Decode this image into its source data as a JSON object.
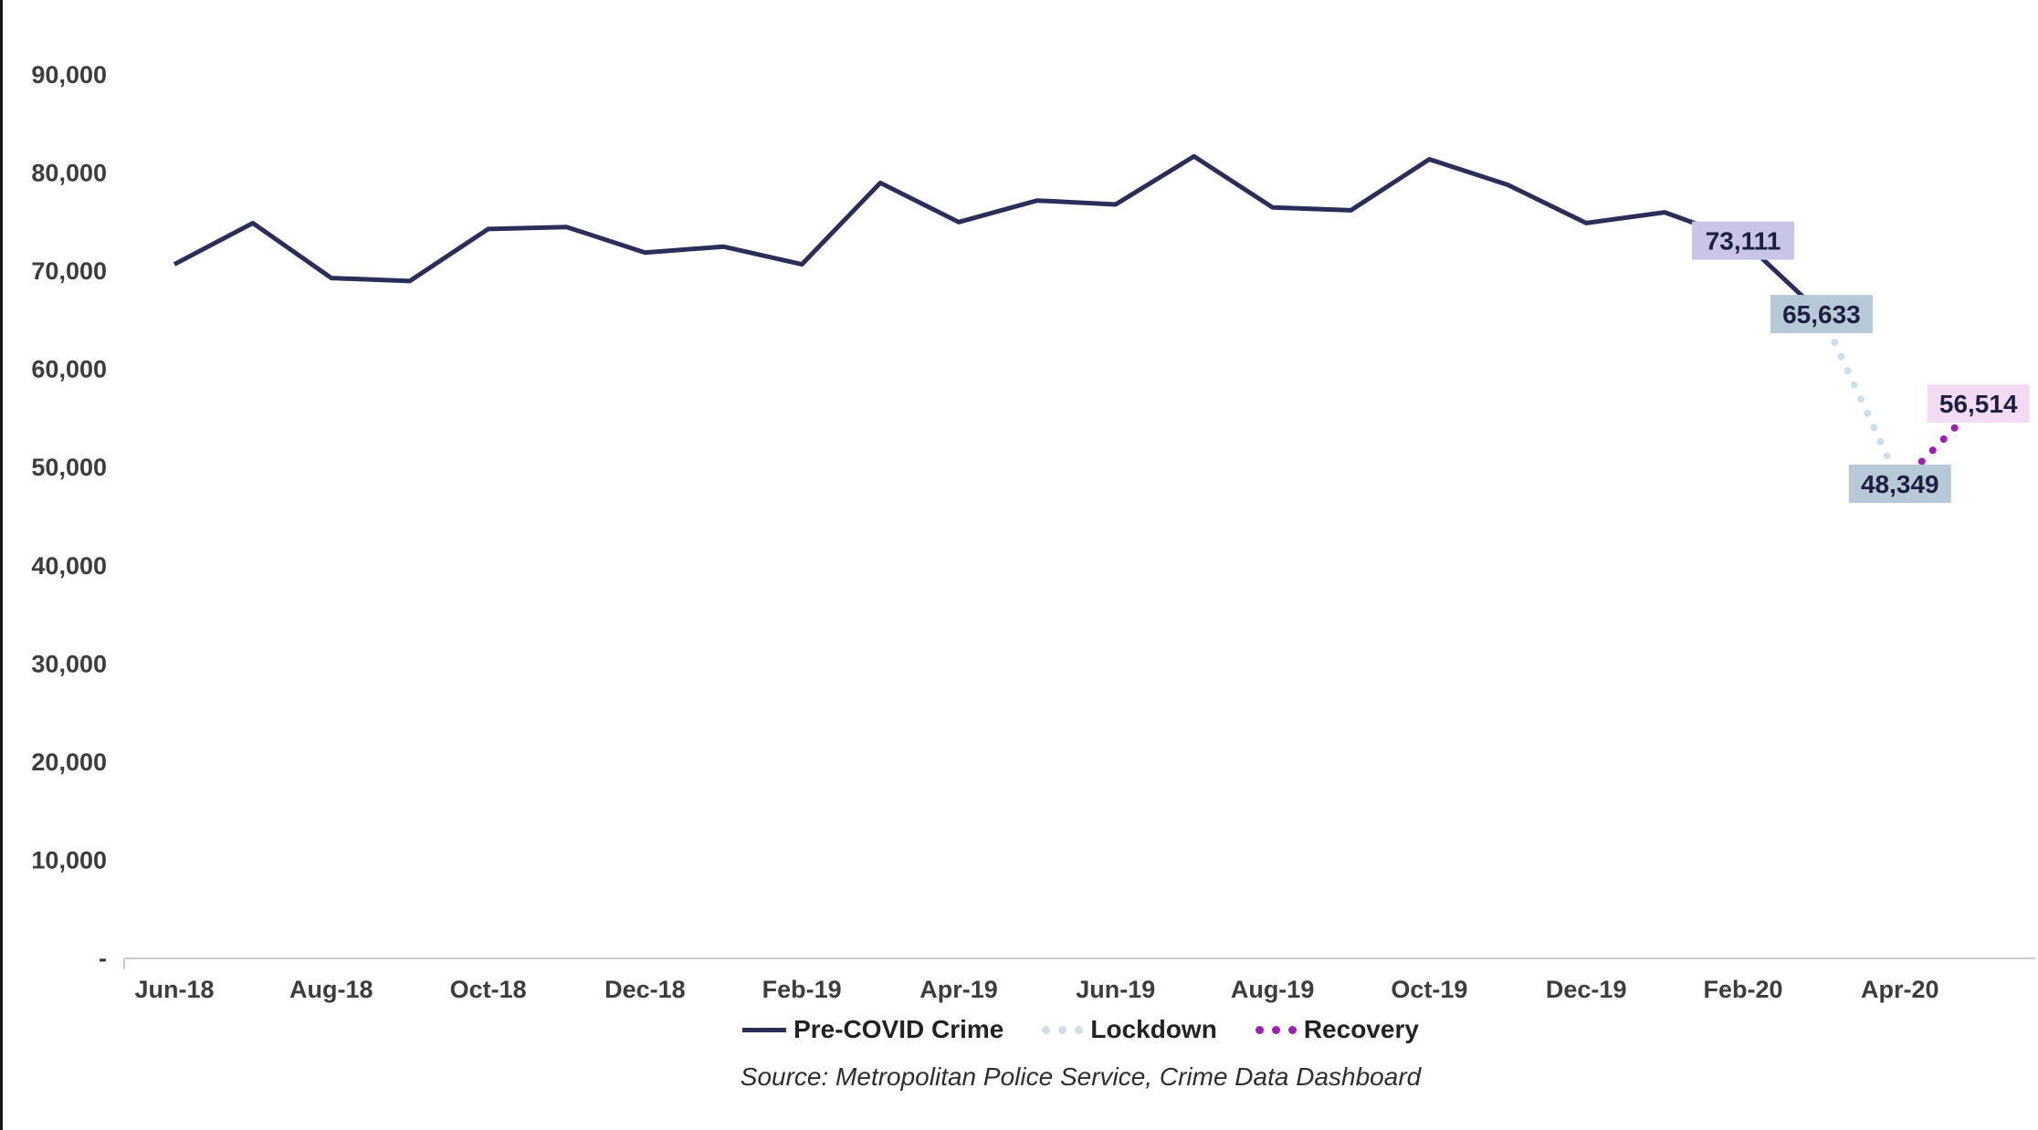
{
  "chart_data": {
    "type": "line",
    "title": "",
    "x_months": [
      "Jun-18",
      "Jul-18",
      "Aug-18",
      "Sep-18",
      "Oct-18",
      "Nov-18",
      "Dec-18",
      "Jan-19",
      "Feb-19",
      "Mar-19",
      "Apr-19",
      "May-19",
      "Jun-19",
      "Jul-19",
      "Aug-19",
      "Sep-19",
      "Oct-19",
      "Nov-19",
      "Dec-19",
      "Jan-20",
      "Feb-20",
      "Mar-20",
      "Apr-20",
      "May-20"
    ],
    "x_tick_every": 2,
    "ylim": [
      0,
      90000
    ],
    "y_ticks": [
      {
        "value": 0,
        "label": "-"
      },
      {
        "value": 10000,
        "label": "10,000"
      },
      {
        "value": 20000,
        "label": "20,000"
      },
      {
        "value": 30000,
        "label": "30,000"
      },
      {
        "value": 40000,
        "label": "40,000"
      },
      {
        "value": 50000,
        "label": "50,000"
      },
      {
        "value": 60000,
        "label": "60,000"
      },
      {
        "value": 70000,
        "label": "70,000"
      },
      {
        "value": 80000,
        "label": "80,000"
      },
      {
        "value": 90000,
        "label": "90,000"
      }
    ],
    "series": [
      {
        "name": "Pre-COVID Crime",
        "style": "solid",
        "color": "#2b2e58",
        "start_index": 0,
        "values": [
          70700,
          74900,
          69300,
          69000,
          74300,
          74500,
          71900,
          72500,
          70700,
          79000,
          75000,
          77200,
          76800,
          81700,
          76500,
          76200,
          81400,
          78800,
          74900,
          76000,
          73111,
          65633
        ]
      },
      {
        "name": "Lockdown",
        "style": "dotted",
        "color": "#cfdfe9",
        "start_index": 21,
        "values": [
          65633,
          48349
        ]
      },
      {
        "name": "Recovery",
        "style": "dotted",
        "color": "#9f1eb3",
        "start_index": 22,
        "values": [
          48349,
          56514
        ]
      }
    ],
    "data_labels": [
      {
        "text": "73,111",
        "value": 73111,
        "index": 20,
        "bg": "#c8c5e6"
      },
      {
        "text": "65,633",
        "value": 65633,
        "index": 21,
        "bg": "#b7c9d6"
      },
      {
        "text": "48,349",
        "value": 48349,
        "index": 22,
        "bg": "#b7c9d6"
      },
      {
        "text": "56,514",
        "value": 56514,
        "index": 23,
        "bg": "#f3dbf4"
      }
    ],
    "legend": [
      {
        "label": "Pre-COVID Crime",
        "marker": "line",
        "color": "#2b2e58"
      },
      {
        "label": "Lockdown",
        "marker": "dots",
        "color": "#cfdfe9"
      },
      {
        "label": "Recovery",
        "marker": "dots",
        "color": "#9f1eb3"
      }
    ],
    "source": "Source: Metropolitan Police Service, Crime Data Dashboard"
  }
}
